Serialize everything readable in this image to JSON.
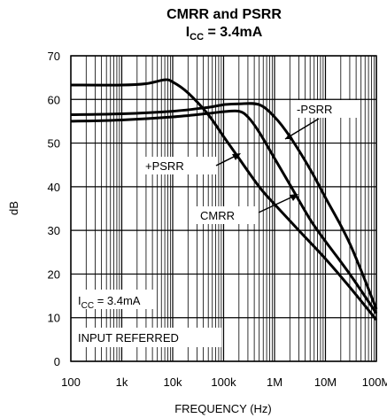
{
  "chart_data": {
    "type": "line",
    "title": "CMRR and PSRR",
    "subtitle_main": "I",
    "subtitle_sub": "CC",
    "subtitle_rest": " = 3.4mA",
    "xlabel": "FREQUENCY (Hz)",
    "ylabel": "dB",
    "x_scale": "log",
    "xlim": [
      100,
      100000000
    ],
    "ylim": [
      0,
      70
    ],
    "x_ticks": [
      {
        "value": 100,
        "label": "100"
      },
      {
        "value": 1000,
        "label": "1k"
      },
      {
        "value": 10000,
        "label": "10k"
      },
      {
        "value": 100000,
        "label": "100k"
      },
      {
        "value": 1000000,
        "label": "1M"
      },
      {
        "value": 10000000,
        "label": "10M"
      },
      {
        "value": 100000000,
        "label": "100M"
      }
    ],
    "y_ticks": [
      0,
      10,
      20,
      30,
      40,
      50,
      60,
      70
    ],
    "grid": true,
    "series": [
      {
        "name": "CMRR",
        "points": [
          [
            100,
            63.3
          ],
          [
            1000,
            63.3
          ],
          [
            3000,
            63.6
          ],
          [
            7000,
            64.5
          ],
          [
            10000,
            64.0
          ],
          [
            20000,
            61.5
          ],
          [
            50000,
            56.5
          ],
          [
            100000,
            51.5
          ],
          [
            200000,
            46.5
          ],
          [
            500000,
            40.0
          ],
          [
            1000000,
            36.0
          ],
          [
            3000000,
            30.0
          ],
          [
            10000000,
            23.5
          ],
          [
            30000000,
            17.0
          ],
          [
            100000000,
            9.5
          ]
        ]
      },
      {
        "name": "+PSRR",
        "points": [
          [
            100,
            55.0
          ],
          [
            1000,
            55.3
          ],
          [
            10000,
            56.0
          ],
          [
            50000,
            56.8
          ],
          [
            100000,
            57.2
          ],
          [
            200000,
            57.3
          ],
          [
            300000,
            56.0
          ],
          [
            500000,
            52.5
          ],
          [
            1000000,
            46.5
          ],
          [
            2000000,
            40.5
          ],
          [
            5000000,
            32.5
          ],
          [
            10000000,
            27.5
          ],
          [
            30000000,
            20.0
          ],
          [
            100000000,
            11.0
          ]
        ]
      },
      {
        "name": "-PSRR",
        "points": [
          [
            100,
            56.5
          ],
          [
            1000,
            56.7
          ],
          [
            10000,
            57.3
          ],
          [
            50000,
            58.2
          ],
          [
            100000,
            58.8
          ],
          [
            200000,
            59.0
          ],
          [
            500000,
            58.8
          ],
          [
            1000000,
            56.0
          ],
          [
            2000000,
            51.5
          ],
          [
            5000000,
            44.0
          ],
          [
            10000000,
            37.5
          ],
          [
            30000000,
            27.0
          ],
          [
            100000000,
            12.0
          ]
        ]
      }
    ],
    "annotations": [
      {
        "text": "-PSRR",
        "series": "-PSRR"
      },
      {
        "text": "+PSRR",
        "series": "+PSRR"
      },
      {
        "text": "CMRR",
        "series": "CMRR"
      }
    ],
    "notes": {
      "icc_main": "I",
      "icc_sub": "CC",
      "icc_rest": " = 3.4mA",
      "referred": "INPUT REFERRED"
    }
  }
}
